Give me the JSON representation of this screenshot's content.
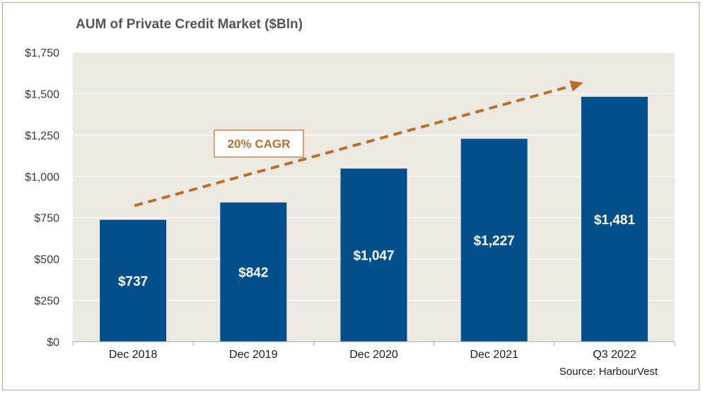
{
  "chart_data": {
    "type": "bar",
    "title": "AUM of Private Credit Market ($Bln)",
    "xlabel": "",
    "ylabel": "",
    "categories": [
      "Dec 2018",
      "Dec 2019",
      "Dec 2020",
      "Dec 2021",
      "Q3 2022"
    ],
    "values": [
      737,
      842,
      1047,
      1227,
      1481
    ],
    "value_labels": [
      "$737",
      "$842",
      "$1,047",
      "$1,227",
      "$1,481"
    ],
    "ylim": [
      0,
      1750
    ],
    "yticks": [
      0,
      250,
      500,
      750,
      1000,
      1250,
      1500,
      1750
    ],
    "ytick_labels": [
      "$0",
      "$250",
      "$500",
      "$750",
      "$1,000",
      "$1,250",
      "$1,500",
      "$1,750"
    ],
    "grid": true,
    "annotation": "20% CAGR",
    "source": "Source: HarbourVest",
    "colors": {
      "bar": "#034f8b",
      "plot_background": "#ebe9e2",
      "gridline": "#ffffff",
      "trend_arrow": "#b8702b",
      "frame": "#b7a987"
    }
  }
}
